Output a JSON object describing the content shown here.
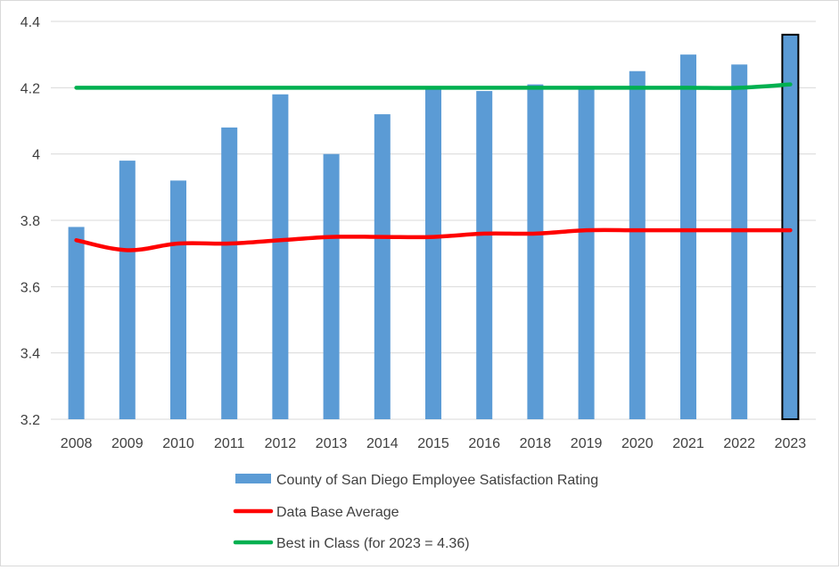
{
  "chart_data": {
    "type": "bar",
    "categories": [
      "2008",
      "2009",
      "2010",
      "2011",
      "2012",
      "2013",
      "2014",
      "2015",
      "2016",
      "2018",
      "2019",
      "2020",
      "2021",
      "2022",
      "2023"
    ],
    "series": [
      {
        "name": "County of San Diego Employee Satisfaction Rating",
        "kind": "bar",
        "color": "#5b9bd5",
        "values": [
          3.78,
          3.98,
          3.92,
          4.08,
          4.18,
          4.0,
          4.12,
          4.2,
          4.19,
          4.21,
          4.2,
          4.25,
          4.3,
          4.27,
          4.36
        ],
        "highlight_category": "2023",
        "highlight_border": "#000000"
      },
      {
        "name": "Data Base Average",
        "kind": "line",
        "color": "#ff0000",
        "values": [
          3.74,
          3.71,
          3.73,
          3.73,
          3.74,
          3.75,
          3.75,
          3.75,
          3.76,
          3.76,
          3.77,
          3.77,
          3.77,
          3.77,
          3.77
        ]
      },
      {
        "name": "Best in Class (for 2023 = 4.36)",
        "kind": "line",
        "color": "#00b050",
        "values": [
          4.2,
          4.2,
          4.2,
          4.2,
          4.2,
          4.2,
          4.2,
          4.2,
          4.2,
          4.2,
          4.2,
          4.2,
          4.2,
          4.2,
          4.21
        ]
      }
    ],
    "y_ticks": [
      "3.2",
      "3.4",
      "3.6",
      "3.8",
      "4",
      "4.2",
      "4.4"
    ],
    "ylim": [
      3.2,
      4.4
    ],
    "grid": true,
    "legend_position": "bottom"
  }
}
